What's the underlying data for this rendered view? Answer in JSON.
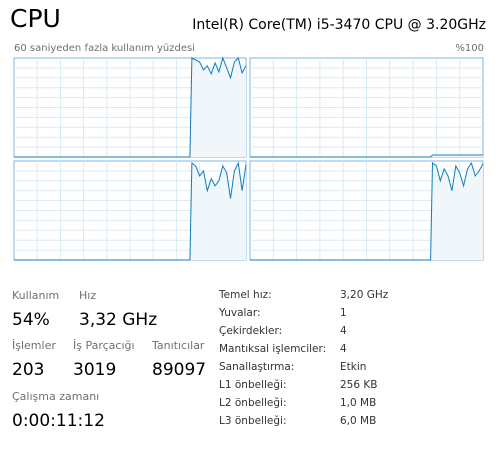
{
  "header": {
    "title": "CPU",
    "processor": "Intel(R) Core(TM) i5-3470 CPU @ 3.20GHz"
  },
  "graph": {
    "caption": "60 saniyeden fazla kullanım yüzdesi",
    "max_label": "%100"
  },
  "chart_data": [
    {
      "type": "line",
      "color": "#117dbb",
      "xlim": [
        0,
        60
      ],
      "ylim": [
        0,
        100
      ],
      "grid": true,
      "x": [
        0,
        45.5,
        46,
        47,
        48,
        49,
        50,
        51,
        52,
        53,
        54,
        55,
        56,
        57,
        58,
        59,
        60
      ],
      "values": [
        0,
        0,
        100,
        98,
        96,
        88,
        92,
        84,
        95,
        86,
        100,
        90,
        80,
        96,
        100,
        85,
        92
      ]
    },
    {
      "type": "line",
      "color": "#117dbb",
      "xlim": [
        0,
        60
      ],
      "ylim": [
        0,
        100
      ],
      "grid": true,
      "x": [
        0,
        46.5,
        47,
        60
      ],
      "values": [
        0,
        0,
        2,
        2
      ]
    },
    {
      "type": "line",
      "color": "#117dbb",
      "xlim": [
        0,
        60
      ],
      "ylim": [
        0,
        100
      ],
      "grid": true,
      "x": [
        0,
        45.5,
        46,
        47,
        48,
        49,
        50,
        51,
        52,
        53,
        54,
        55,
        56,
        57,
        58,
        59,
        60
      ],
      "values": [
        0,
        0,
        98,
        95,
        85,
        90,
        70,
        82,
        75,
        80,
        95,
        88,
        62,
        90,
        98,
        70,
        96
      ]
    },
    {
      "type": "line",
      "color": "#117dbb",
      "xlim": [
        0,
        60
      ],
      "ylim": [
        0,
        100
      ],
      "grid": true,
      "x": [
        0,
        46.5,
        47,
        48,
        49,
        50,
        51,
        52,
        53,
        54,
        55,
        56,
        57,
        58,
        59,
        60
      ],
      "values": [
        0,
        0,
        98,
        95,
        80,
        92,
        85,
        70,
        95,
        88,
        75,
        92,
        98,
        85,
        90,
        97
      ]
    }
  ],
  "stats": {
    "usage_label": "Kullanım",
    "usage": "54%",
    "speed_label": "Hız",
    "speed": "3,32 GHz",
    "processes_label": "İşlemler",
    "processes": "203",
    "threads_label": "İş Parçacığı",
    "threads": "3019",
    "handles_label": "Tanıtıcılar",
    "handles": "89097",
    "uptime_label": "Çalışma zamanı",
    "uptime": "0:00:11:12"
  },
  "details": [
    [
      "Temel hız:",
      "3,20 GHz"
    ],
    [
      "Yuvalar:",
      "1"
    ],
    [
      "Çekirdekler:",
      "4"
    ],
    [
      "Mantıksal işlemciler:",
      "4"
    ],
    [
      "Sanallaştırma:",
      "Etkin"
    ],
    [
      "L1 önbelleği:",
      "256 KB"
    ],
    [
      "L2 önbelleği:",
      "1,0 MB"
    ],
    [
      "L3 önbelleği:",
      "6,0 MB"
    ]
  ]
}
